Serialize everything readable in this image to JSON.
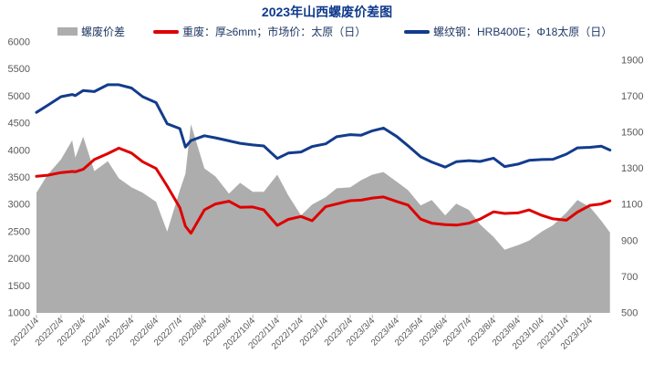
{
  "title": "2023年山西螺废价差图",
  "legend": [
    {
      "label": "螺废价差",
      "type": "area",
      "color": "#ADADAD"
    },
    {
      "label": "重废：厚≥6mm；市场价：太原（日）",
      "type": "line",
      "color": "#DE0000"
    },
    {
      "label": "螺纹钢：HRB400E；Φ18太原（日）",
      "type": "line",
      "color": "#123C8C"
    }
  ],
  "colors": {
    "title": "#0E3A8C",
    "legend_text": "#1F3864",
    "axis_text": "#595959",
    "area": "#ADADAD",
    "scrap_line": "#DE0000",
    "rebar_line": "#123C8C"
  },
  "chart_data": {
    "type": "area",
    "title": "2023年山西螺废价差图",
    "grid": false,
    "legend_position": "top",
    "y_left": {
      "min": 1000,
      "max": 6000,
      "step": 500
    },
    "y_right": {
      "min": 500,
      "label_max": 1900,
      "step": 200,
      "axis_max": 2000
    },
    "x_ticks": [
      "2022/1/4",
      "2022/2/4",
      "2022/3/4",
      "2022/4/4",
      "2022/5/4",
      "2022/6/4",
      "2022/7/4",
      "2022/8/4",
      "2022/9/4",
      "2022/10/4",
      "2022/11/4",
      "2022/12/4",
      "2023/1/4",
      "2023/2/4",
      "2023/3/4",
      "2023/4/4",
      "2023/5/4",
      "2023/6/4",
      "2023/7/4",
      "2023/8/4",
      "2023/9/4",
      "2023/10/4",
      "2023/11/4",
      "2023/12/4"
    ],
    "x": [
      "2022/1/4",
      "2022/1/18",
      "2022/2/4",
      "2022/2/18",
      "2022/2/22",
      "2022/3/4",
      "2022/3/18",
      "2022/4/4",
      "2022/4/18",
      "2022/5/4",
      "2022/5/18",
      "2022/6/4",
      "2022/6/18",
      "2022/7/4",
      "2022/7/11",
      "2022/7/18",
      "2022/8/4",
      "2022/8/18",
      "2022/9/4",
      "2022/9/18",
      "2022/10/4",
      "2022/10/18",
      "2022/11/4",
      "2022/11/18",
      "2022/12/4",
      "2022/12/18",
      "2023/1/4",
      "2023/1/18",
      "2023/2/4",
      "2023/2/18",
      "2023/3/4",
      "2023/3/18",
      "2023/4/4",
      "2023/4/18",
      "2023/5/4",
      "2023/5/18",
      "2023/6/4",
      "2023/6/18",
      "2023/7/4",
      "2023/7/18",
      "2023/8/4",
      "2023/8/18",
      "2023/9/4",
      "2023/9/18",
      "2023/10/4",
      "2023/10/18",
      "2023/11/4",
      "2023/11/18",
      "2023/12/4",
      "2023/12/18",
      "2023/12/29"
    ],
    "series": [
      {
        "name": "螺废价差",
        "type": "area",
        "axis": "right",
        "color": "#ADADAD",
        "values": [
          1165,
          1265,
          1350,
          1455,
          1360,
          1475,
          1285,
          1340,
          1245,
          1195,
          1165,
          1115,
          950,
          1180,
          1270,
          1545,
          1300,
          1255,
          1160,
          1220,
          1170,
          1170,
          1265,
          1150,
          1040,
          1100,
          1140,
          1190,
          1195,
          1235,
          1265,
          1280,
          1225,
          1180,
          1095,
          1125,
          1040,
          1105,
          1070,
          990,
          920,
          850,
          875,
          900,
          950,
          985,
          1055,
          1125,
          1085,
          1010,
          945
        ]
      },
      {
        "name": "重废：厚≥6mm；市场价：太原（日）",
        "type": "line",
        "axis": "left",
        "color": "#DE0000",
        "values": [
          3520,
          3540,
          3590,
          3610,
          3605,
          3650,
          3830,
          3940,
          4040,
          3950,
          3790,
          3665,
          3340,
          2940,
          2600,
          2470,
          2900,
          3010,
          3060,
          2950,
          2955,
          2900,
          2615,
          2725,
          2780,
          2700,
          2960,
          3010,
          3070,
          3080,
          3120,
          3140,
          3055,
          2990,
          2730,
          2655,
          2630,
          2620,
          2655,
          2730,
          2865,
          2835,
          2845,
          2900,
          2800,
          2735,
          2710,
          2860,
          2985,
          3010,
          3065
        ]
      },
      {
        "name": "螺纹钢：HRB400E；Φ18太原（日）",
        "type": "line",
        "axis": "left",
        "color": "#123C8C",
        "values": [
          4700,
          4830,
          4990,
          5030,
          5010,
          5105,
          5085,
          5210,
          5210,
          5150,
          4990,
          4880,
          4490,
          4400,
          4060,
          4180,
          4270,
          4230,
          4175,
          4130,
          4100,
          4080,
          3850,
          3950,
          3970,
          4070,
          4120,
          4250,
          4290,
          4280,
          4360,
          4410,
          4255,
          4085,
          3880,
          3785,
          3690,
          3790,
          3810,
          3795,
          3855,
          3700,
          3745,
          3815,
          3830,
          3835,
          3930,
          4045,
          4055,
          4075,
          4005
        ]
      }
    ]
  }
}
